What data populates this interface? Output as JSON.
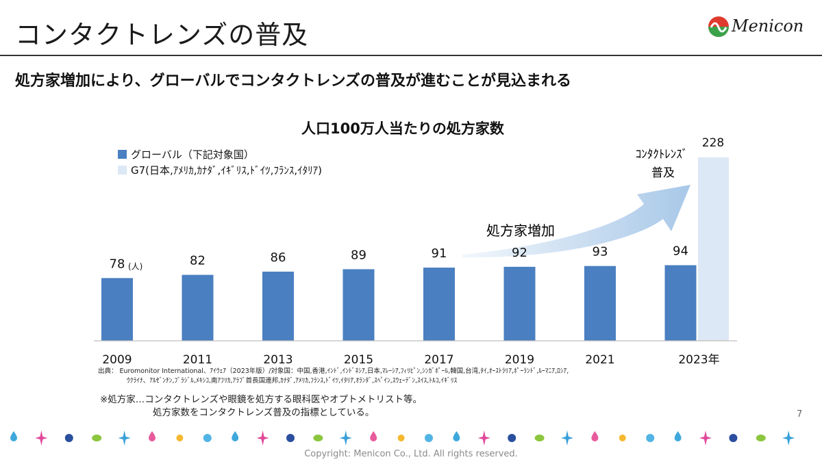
{
  "header": {
    "title": "コンタクトレンズの普及",
    "logo_text": "Menicon",
    "headline": "処方家増加により、グローバルでコンタクトレンズの普及が進むことが見込まれる"
  },
  "colors": {
    "bar_global": "#4a7fc1",
    "bar_g7": "#dce8f5",
    "arrow": "#a8c8e8"
  },
  "chart_data": {
    "type": "bar",
    "title": "人口100万人当たりの処方家数",
    "categories": [
      "2009",
      "2011",
      "2013",
      "2015",
      "2017",
      "2019",
      "2021",
      "2023年"
    ],
    "series": [
      {
        "name": "グローバル（下記対象国）",
        "values": [
          78,
          82,
          86,
          89,
          91,
          92,
          93,
          94
        ]
      },
      {
        "name": "G7(日本,ｱﾒﾘｶ,ｶﾅﾀﾞ,ｲｷﾞﾘｽ,ﾄﾞｲﾂ,ﾌﾗﾝｽ,ｲﾀﾘｱ)",
        "values": [
          null,
          null,
          null,
          null,
          null,
          null,
          null,
          228
        ]
      }
    ],
    "data_labels": [
      "78",
      "82",
      "86",
      "89",
      "91",
      "92",
      "93",
      "94"
    ],
    "g7_label": "228",
    "unit_label": "(人)",
    "annotations": {
      "arrow_label": "処方家増加",
      "vertical_line1": "ｺﾝﾀｸﾄﾚﾝｽﾞ",
      "vertical_line2": "普及"
    },
    "legend_position": "top-left",
    "grid": false
  },
  "source": {
    "line1": "出典： Euromonitor International、ｱｲｳｪｱ（2023年版）/対象国：中国,香港,ｲﾝﾄﾞ,ｲﾝﾄﾞﾈｼｱ,日本,ﾏﾚｰｼｱ,ﾌｨﾘﾋﾟﾝ,ｼﾝｶﾞﾎﾟｰﾙ,韓国,台湾,ﾀｲ,ｵｰｽﾄﾗﾘｱ,ﾎﾟｰﾗﾝﾄﾞ,ﾙｰﾏﾆｱ,ﾛｼｱ,",
    "line2": "ｳｸﾗｲﾅ、ｱﾙｾﾞﾝﾁﾝ,ﾌﾞﾗｼﾞﾙ,ﾒｷｼｺ,南ｱﾌﾘｶ,ｱﾗﾌﾞ首長国連邦,ｶﾅﾀﾞ,ｱﾒﾘｶ,ﾌﾗﾝｽ,ﾄﾞｲﾂ,ｲﾀﾘｱ,ｵﾗﾝﾀﾞ,ｽﾍﾟｲﾝ,ｽｳｪｰﾃﾞﾝ,ｽｲｽ,ﾄﾙｺ,ｲｷﾞﾘｽ"
  },
  "note": {
    "line1": "※処方家…コンタクトレンズや眼鏡を処方する眼科医やオプトメトリスト等。",
    "line2": "処方家数をコンタクトレンズ普及の指標としている。"
  },
  "page_number": "7",
  "copyright": "Copyright: Menicon Co., Ltd. All rights reserved."
}
